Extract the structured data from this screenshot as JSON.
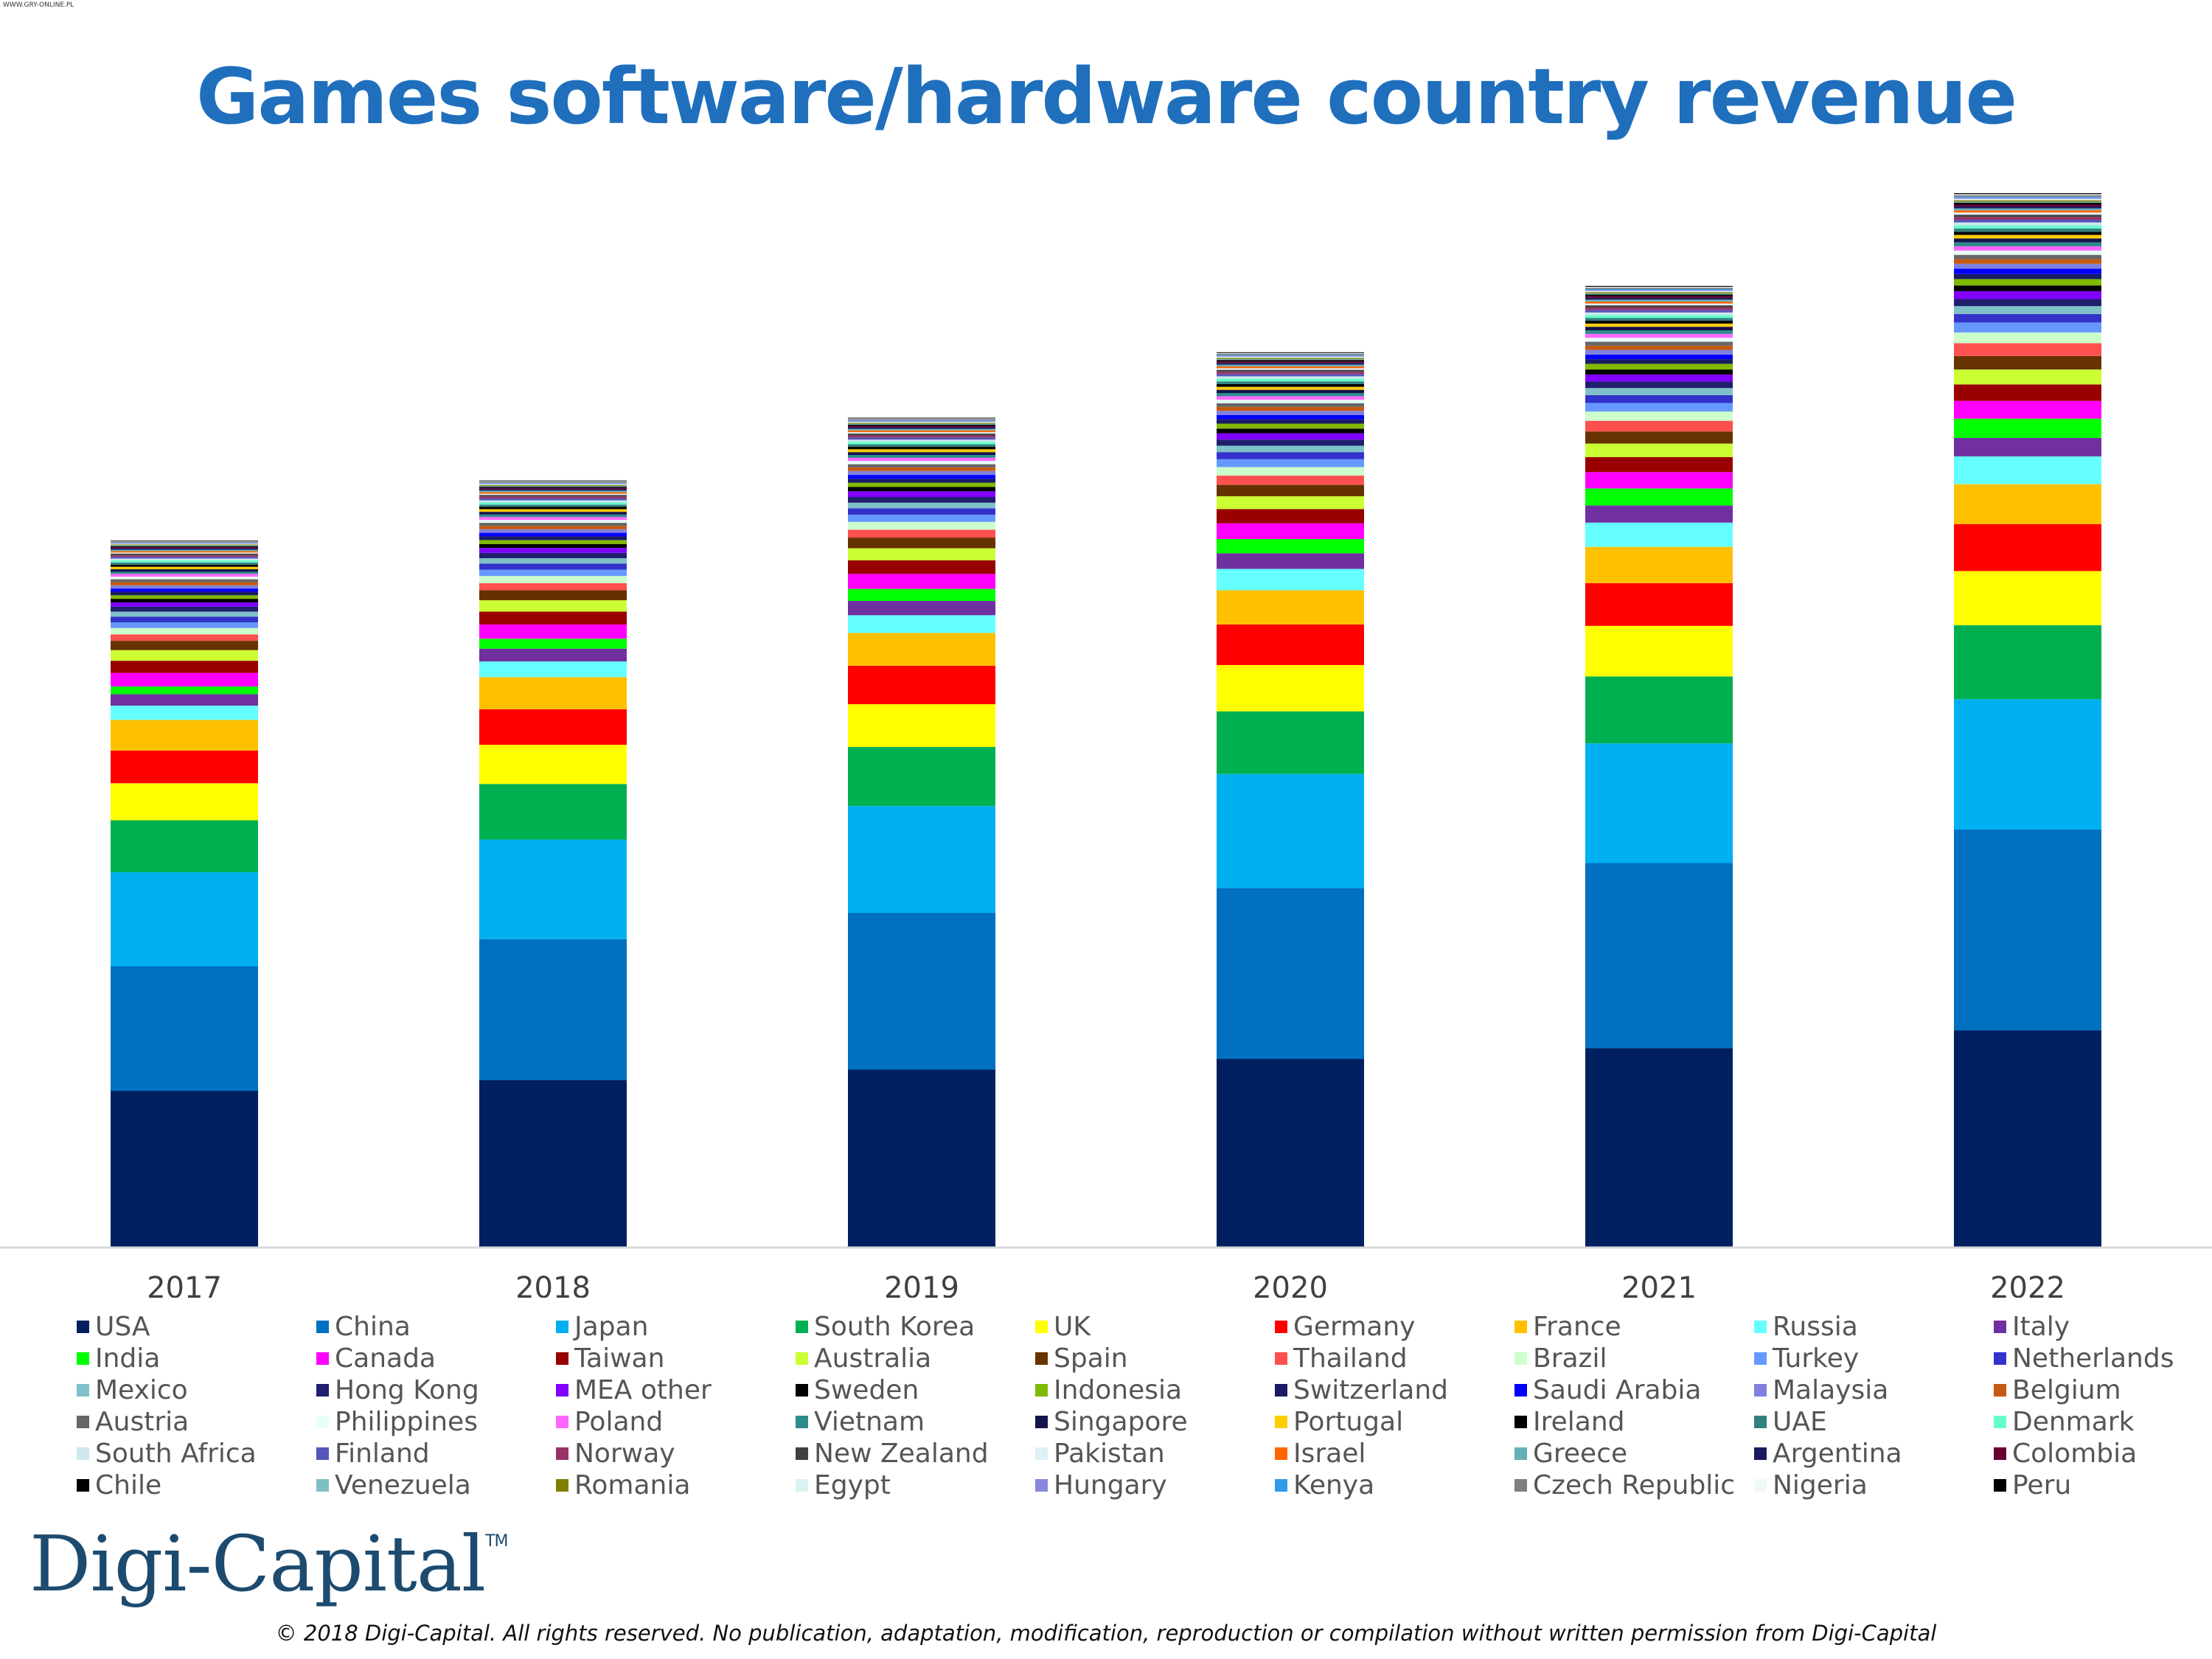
{
  "page": {
    "corner_tag": "WWW.GRY-ONLINE.PL",
    "title": "Games software/hardware country revenue",
    "logo_text": "Digi-Capital",
    "logo_mark": "TM",
    "copyright": "© 2018 Digi-Capital. All rights reserved. No publication, adaptation, modification, reproduction or compilation without written permission from Digi-Capital"
  },
  "chart_data": {
    "type": "bar",
    "stacked": true,
    "title": "Games software/hardware country revenue",
    "xlabel": "",
    "ylabel": "",
    "y_axis_labels_shown": false,
    "grid": false,
    "legend_position": "bottom",
    "categories": [
      "2017",
      "2018",
      "2019",
      "2020",
      "2021",
      "2022"
    ],
    "series": [
      {
        "name": "USA",
        "color": "#002060",
        "values": [
          22.0,
          23.5,
          25.0,
          26.5,
          28.0,
          30.5
        ]
      },
      {
        "name": "China",
        "color": "#0070c0",
        "values": [
          17.5,
          19.8,
          22.0,
          24.0,
          26.0,
          28.2
        ]
      },
      {
        "name": "Japan",
        "color": "#00b0f0",
        "values": [
          13.2,
          14.0,
          15.0,
          16.0,
          16.8,
          18.3
        ]
      },
      {
        "name": "South Korea",
        "color": "#00b050",
        "values": [
          7.3,
          7.8,
          8.3,
          8.8,
          9.4,
          10.4
        ]
      },
      {
        "name": "UK",
        "color": "#ffff00",
        "values": [
          5.2,
          5.5,
          6.0,
          6.5,
          7.1,
          7.6
        ]
      },
      {
        "name": "Germany",
        "color": "#ff0000",
        "values": [
          4.6,
          5.0,
          5.4,
          5.7,
          6.0,
          6.6
        ]
      },
      {
        "name": "France",
        "color": "#ffc000",
        "values": [
          4.3,
          4.5,
          4.6,
          4.8,
          5.1,
          5.6
        ]
      },
      {
        "name": "Russia",
        "color": "#66ffff",
        "values": [
          2.0,
          2.2,
          2.5,
          3.0,
          3.4,
          3.9
        ]
      },
      {
        "name": "Italy",
        "color": "#7030a0",
        "values": [
          1.6,
          1.8,
          2.0,
          2.2,
          2.4,
          2.6
        ]
      },
      {
        "name": "India",
        "color": "#00ff00",
        "values": [
          1.1,
          1.4,
          1.7,
          2.0,
          2.4,
          2.7
        ]
      },
      {
        "name": "Canada",
        "color": "#ff00ff",
        "values": [
          1.9,
          2.0,
          2.1,
          2.2,
          2.3,
          2.5
        ]
      },
      {
        "name": "Taiwan",
        "color": "#990000",
        "values": [
          1.7,
          1.8,
          1.9,
          2.0,
          2.1,
          2.3
        ]
      },
      {
        "name": "Australia",
        "color": "#ccff33",
        "values": [
          1.5,
          1.6,
          1.7,
          1.8,
          1.9,
          2.1
        ]
      },
      {
        "name": "Spain",
        "color": "#663300",
        "values": [
          1.3,
          1.4,
          1.5,
          1.6,
          1.7,
          1.9
        ]
      },
      {
        "name": "Thailand",
        "color": "#ff5050",
        "values": [
          0.9,
          1.0,
          1.1,
          1.3,
          1.5,
          1.8
        ]
      },
      {
        "name": "Brazil",
        "color": "#ccffcc",
        "values": [
          0.9,
          1.0,
          1.1,
          1.2,
          1.3,
          1.5
        ]
      },
      {
        "name": "Turkey",
        "color": "#6699ff",
        "values": [
          0.8,
          0.9,
          1.0,
          1.1,
          1.2,
          1.4
        ]
      },
      {
        "name": "Netherlands",
        "color": "#3333cc",
        "values": [
          0.8,
          0.85,
          0.9,
          1.0,
          1.1,
          1.2
        ]
      },
      {
        "name": "Mexico",
        "color": "#80c0c8",
        "values": [
          0.7,
          0.75,
          0.8,
          0.9,
          1.0,
          1.1
        ]
      },
      {
        "name": "Hong Kong",
        "color": "#1f1f6e",
        "values": [
          0.7,
          0.75,
          0.8,
          0.85,
          0.9,
          1.0
        ]
      },
      {
        "name": "MEA other",
        "color": "#8000ff",
        "values": [
          0.6,
          0.7,
          0.8,
          0.9,
          1.0,
          1.1
        ]
      },
      {
        "name": "Sweden",
        "color": "#000000",
        "values": [
          0.5,
          0.55,
          0.6,
          0.65,
          0.7,
          0.8
        ]
      },
      {
        "name": "Indonesia",
        "color": "#7fba00",
        "values": [
          0.5,
          0.55,
          0.6,
          0.7,
          0.8,
          0.9
        ]
      },
      {
        "name": "Switzerland",
        "color": "#1a1a66",
        "values": [
          0.5,
          0.52,
          0.55,
          0.6,
          0.65,
          0.7
        ]
      },
      {
        "name": "Saudi Arabia",
        "color": "#0000ff",
        "values": [
          0.45,
          0.5,
          0.55,
          0.6,
          0.65,
          0.75
        ]
      },
      {
        "name": "Malaysia",
        "color": "#8080e0",
        "values": [
          0.45,
          0.5,
          0.55,
          0.6,
          0.65,
          0.7
        ]
      },
      {
        "name": "Belgium",
        "color": "#c55a11",
        "values": [
          0.45,
          0.48,
          0.5,
          0.55,
          0.6,
          0.65
        ]
      },
      {
        "name": "Austria",
        "color": "#666666",
        "values": [
          0.4,
          0.42,
          0.45,
          0.5,
          0.55,
          0.6
        ]
      },
      {
        "name": "Philippines",
        "color": "#e8fff8",
        "values": [
          0.35,
          0.4,
          0.45,
          0.5,
          0.55,
          0.6
        ]
      },
      {
        "name": "Poland",
        "color": "#ff66ff",
        "values": [
          0.4,
          0.42,
          0.45,
          0.5,
          0.55,
          0.6
        ]
      },
      {
        "name": "Vietnam",
        "color": "#2e8b8b",
        "values": [
          0.3,
          0.35,
          0.4,
          0.45,
          0.5,
          0.55
        ]
      },
      {
        "name": "Singapore",
        "color": "#14144a",
        "values": [
          0.35,
          0.38,
          0.4,
          0.45,
          0.5,
          0.55
        ]
      },
      {
        "name": "Portugal",
        "color": "#ffcc00",
        "values": [
          0.35,
          0.37,
          0.4,
          0.42,
          0.45,
          0.5
        ]
      },
      {
        "name": "Ireland",
        "color": "#000000",
        "values": [
          0.3,
          0.32,
          0.35,
          0.38,
          0.4,
          0.45
        ]
      },
      {
        "name": "UAE",
        "color": "#338080",
        "values": [
          0.3,
          0.32,
          0.35,
          0.38,
          0.4,
          0.45
        ]
      },
      {
        "name": "Denmark",
        "color": "#66ffcc",
        "values": [
          0.3,
          0.32,
          0.35,
          0.38,
          0.4,
          0.45
        ]
      },
      {
        "name": "South Africa",
        "color": "#cce8ec",
        "values": [
          0.25,
          0.28,
          0.3,
          0.33,
          0.36,
          0.4
        ]
      },
      {
        "name": "Finland",
        "color": "#5555bb",
        "values": [
          0.25,
          0.27,
          0.3,
          0.32,
          0.35,
          0.38
        ]
      },
      {
        "name": "Norway",
        "color": "#993366",
        "values": [
          0.25,
          0.27,
          0.3,
          0.32,
          0.35,
          0.38
        ]
      },
      {
        "name": "New Zealand",
        "color": "#404040",
        "values": [
          0.2,
          0.22,
          0.25,
          0.27,
          0.3,
          0.33
        ]
      },
      {
        "name": "Pakistan",
        "color": "#e0f0f8",
        "values": [
          0.15,
          0.17,
          0.2,
          0.23,
          0.26,
          0.3
        ]
      },
      {
        "name": "Israel",
        "color": "#ff6600",
        "values": [
          0.2,
          0.22,
          0.24,
          0.26,
          0.28,
          0.3
        ]
      },
      {
        "name": "Greece",
        "color": "#66b0b8",
        "values": [
          0.2,
          0.21,
          0.22,
          0.24,
          0.26,
          0.28
        ]
      },
      {
        "name": "Argentina",
        "color": "#1a1a5e",
        "values": [
          0.2,
          0.21,
          0.22,
          0.24,
          0.26,
          0.28
        ]
      },
      {
        "name": "Colombia",
        "color": "#660033",
        "values": [
          0.15,
          0.17,
          0.19,
          0.21,
          0.23,
          0.26
        ]
      },
      {
        "name": "Chile",
        "color": "#000000",
        "values": [
          0.15,
          0.17,
          0.19,
          0.21,
          0.23,
          0.25
        ]
      },
      {
        "name": "Venezuela",
        "color": "#7fbfc4",
        "values": [
          0.1,
          0.11,
          0.12,
          0.13,
          0.14,
          0.15
        ]
      },
      {
        "name": "Romania",
        "color": "#808000",
        "values": [
          0.12,
          0.13,
          0.14,
          0.16,
          0.18,
          0.2
        ]
      },
      {
        "name": "Egypt",
        "color": "#daf2f2",
        "values": [
          0.12,
          0.13,
          0.15,
          0.17,
          0.19,
          0.22
        ]
      },
      {
        "name": "Hungary",
        "color": "#8888dd",
        "values": [
          0.12,
          0.13,
          0.14,
          0.15,
          0.16,
          0.18
        ]
      },
      {
        "name": "Kenya",
        "color": "#2e9bea",
        "values": [
          0.05,
          0.06,
          0.07,
          0.08,
          0.1,
          0.12
        ]
      },
      {
        "name": "Czech Republic",
        "color": "#7f7f7f",
        "values": [
          0.15,
          0.16,
          0.17,
          0.18,
          0.19,
          0.21
        ]
      },
      {
        "name": "Nigeria",
        "color": "#f0faf5",
        "values": [
          0.06,
          0.07,
          0.08,
          0.1,
          0.12,
          0.14
        ]
      },
      {
        "name": "Peru",
        "color": "#000000",
        "values": [
          0.08,
          0.09,
          0.1,
          0.11,
          0.12,
          0.13
        ]
      }
    ]
  }
}
